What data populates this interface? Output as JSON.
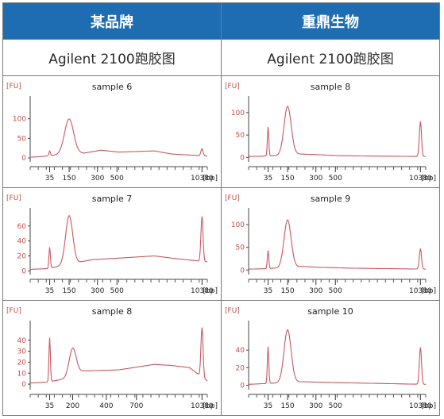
{
  "table": {
    "headers": [
      "某品牌",
      "重鼎生物"
    ],
    "subheaders": [
      "Agilent 2100跑胶图",
      "Agilent 2100跑胶图"
    ],
    "colors": {
      "header_bg": "#1e6db3",
      "trace": "#c9585e",
      "axis_label": "#c0504d"
    }
  },
  "chart_data": [
    {
      "type": "line",
      "title": "sample 6",
      "ylabel": "[FU]",
      "xlabel": "[bp]",
      "yticks": [
        0,
        50,
        100
      ],
      "ylim": [
        -10,
        150
      ],
      "xticklabels": [
        "35",
        "150",
        "300",
        "500",
        "10380"
      ],
      "x_positions": [
        0.11,
        0.22,
        0.38,
        0.49,
        0.97
      ],
      "peaks": [
        {
          "at": 0.11,
          "height": 12,
          "width": 0.004
        },
        {
          "at": 0.22,
          "height": 85,
          "width": 0.025
        },
        {
          "at": 0.97,
          "height": 18,
          "width": 0.006
        }
      ],
      "baseline": [
        [
          0.0,
          2
        ],
        [
          0.05,
          3
        ],
        [
          0.15,
          8
        ],
        [
          0.2,
          15
        ],
        [
          0.3,
          12
        ],
        [
          0.4,
          20
        ],
        [
          0.5,
          15
        ],
        [
          0.7,
          18
        ],
        [
          0.8,
          10
        ],
        [
          1.0,
          5
        ]
      ]
    },
    {
      "type": "line",
      "title": "sample 8",
      "ylabel": "[FU]",
      "xlabel": "[bp]",
      "yticks": [
        0,
        50,
        100
      ],
      "ylim": [
        -10,
        130
      ],
      "xticklabels": [
        "35",
        "150",
        "300",
        "500",
        "10380"
      ],
      "x_positions": [
        0.11,
        0.22,
        0.38,
        0.49,
        0.97
      ],
      "peaks": [
        {
          "at": 0.11,
          "height": 65,
          "width": 0.004
        },
        {
          "at": 0.22,
          "height": 108,
          "width": 0.02
        },
        {
          "at": 0.97,
          "height": 78,
          "width": 0.006
        }
      ],
      "baseline": [
        [
          0.0,
          2
        ],
        [
          0.1,
          3
        ],
        [
          0.2,
          5
        ],
        [
          0.25,
          8
        ],
        [
          0.4,
          6
        ],
        [
          0.5,
          4
        ],
        [
          0.7,
          3
        ],
        [
          1.0,
          2
        ]
      ]
    },
    {
      "type": "line",
      "title": "sample 7",
      "ylabel": "[FU]",
      "xlabel": "[bp]",
      "yticks": [
        0,
        20,
        40,
        60
      ],
      "ylim": [
        -5,
        80
      ],
      "xticklabels": [
        "35",
        "150",
        "300",
        "500",
        "10380"
      ],
      "x_positions": [
        0.11,
        0.22,
        0.38,
        0.49,
        0.97
      ],
      "peaks": [
        {
          "at": 0.11,
          "height": 28,
          "width": 0.004
        },
        {
          "at": 0.22,
          "height": 65,
          "width": 0.02
        },
        {
          "at": 0.97,
          "height": 60,
          "width": 0.006
        }
      ],
      "baseline": [
        [
          0.0,
          2
        ],
        [
          0.1,
          3
        ],
        [
          0.2,
          8
        ],
        [
          0.35,
          15
        ],
        [
          0.5,
          17
        ],
        [
          0.7,
          20
        ],
        [
          0.8,
          17
        ],
        [
          1.0,
          12
        ]
      ]
    },
    {
      "type": "line",
      "title": "sample 9",
      "ylabel": "[FU]",
      "xlabel": "[bp]",
      "yticks": [
        0,
        50,
        100
      ],
      "ylim": [
        -10,
        130
      ],
      "xticklabels": [
        "35",
        "150",
        "300",
        "500",
        "10380"
      ],
      "x_positions": [
        0.11,
        0.22,
        0.38,
        0.49,
        0.97
      ],
      "peaks": [
        {
          "at": 0.11,
          "height": 40,
          "width": 0.004
        },
        {
          "at": 0.22,
          "height": 105,
          "width": 0.02
        },
        {
          "at": 0.97,
          "height": 45,
          "width": 0.006
        }
      ],
      "baseline": [
        [
          0.0,
          2
        ],
        [
          0.1,
          3
        ],
        [
          0.2,
          5
        ],
        [
          0.3,
          8
        ],
        [
          0.4,
          6
        ],
        [
          0.6,
          4
        ],
        [
          1.0,
          2
        ]
      ]
    },
    {
      "type": "line",
      "title": "sample 8",
      "ylabel": "[FU]",
      "xlabel": "[bp]",
      "yticks": [
        0,
        10,
        20,
        30,
        40
      ],
      "ylim": [
        -5,
        55
      ],
      "xticklabels": [
        "35",
        "200",
        "400",
        "700",
        "10380"
      ],
      "x_positions": [
        0.11,
        0.24,
        0.43,
        0.6,
        0.97
      ],
      "peaks": [
        {
          "at": 0.11,
          "height": 40,
          "width": 0.004
        },
        {
          "at": 0.24,
          "height": 25,
          "width": 0.02
        },
        {
          "at": 0.97,
          "height": 45,
          "width": 0.006
        }
      ],
      "baseline": [
        [
          0.0,
          1
        ],
        [
          0.1,
          2
        ],
        [
          0.2,
          5
        ],
        [
          0.3,
          12
        ],
        [
          0.5,
          13
        ],
        [
          0.7,
          18
        ],
        [
          0.8,
          17
        ],
        [
          0.9,
          15
        ],
        [
          1.0,
          3
        ]
      ]
    },
    {
      "type": "line",
      "title": "sample 10",
      "ylabel": "[FU]",
      "xlabel": "[bp]",
      "yticks": [
        0,
        20,
        40
      ],
      "ylim": [
        -5,
        70
      ],
      "xticklabels": [
        "35",
        "150",
        "300",
        "500",
        "10380"
      ],
      "x_positions": [
        0.11,
        0.22,
        0.38,
        0.49,
        0.97
      ],
      "peaks": [
        {
          "at": 0.11,
          "height": 42,
          "width": 0.004
        },
        {
          "at": 0.22,
          "height": 60,
          "width": 0.02
        },
        {
          "at": 0.97,
          "height": 42,
          "width": 0.006
        }
      ],
      "baseline": [
        [
          0.0,
          1
        ],
        [
          0.1,
          2
        ],
        [
          0.2,
          3
        ],
        [
          0.3,
          4
        ],
        [
          0.5,
          3
        ],
        [
          1.0,
          1
        ]
      ]
    }
  ]
}
